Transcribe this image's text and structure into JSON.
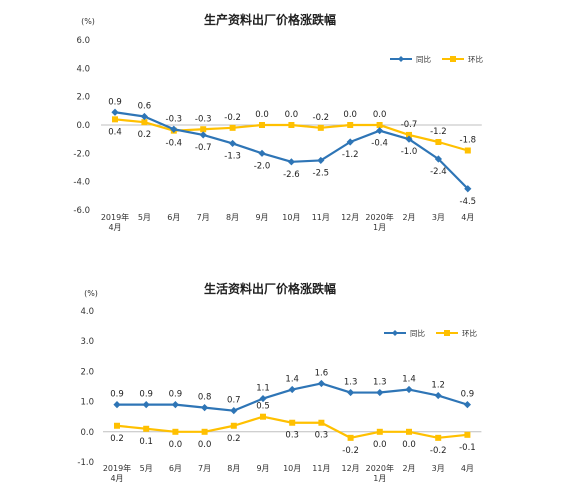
{
  "colors": {
    "yoy": "#2E75B6",
    "mom": "#FFC000",
    "grid": "#D9D9D9",
    "axis": "#BFBFBF"
  },
  "chart_data": [
    {
      "type": "line",
      "title": "生产资料出厂价格涨跌幅",
      "unit": "(%)",
      "x_tick_labels": [
        "2019年",
        "5月",
        "6月",
        "7月",
        "8月",
        "9月",
        "10月",
        "11月",
        "12月",
        "2020年",
        "2月",
        "3月",
        "4月"
      ],
      "x_tick_sublabels": [
        "4月",
        "",
        "",
        "",
        "",
        "",
        "",
        "",
        "",
        "1月",
        "",
        "",
        ""
      ],
      "ylim": [
        -6.0,
        6.0
      ],
      "yticks": [
        "6.0",
        "4.0",
        "2.0",
        "0.0",
        "-2.0",
        "-4.0",
        "-6.0"
      ],
      "ytick_values": [
        6,
        4,
        2,
        0,
        -2,
        -4,
        -6
      ],
      "legend_position": "top-right",
      "grid": false,
      "series": [
        {
          "name": "同比",
          "key": "yoy",
          "values": [
            0.9,
            0.6,
            -0.3,
            -0.7,
            -1.3,
            -2.0,
            -2.6,
            -2.5,
            -1.2,
            -0.4,
            -1.0,
            -2.4,
            -4.5
          ],
          "labels": [
            "0.9",
            "0.6",
            "-0.3",
            "-0.7",
            "-1.3",
            "-2.0",
            "-2.6",
            "-2.5",
            "-1.2",
            "-0.4",
            "-1.0",
            "-2.4",
            "-4.5"
          ]
        },
        {
          "name": "环比",
          "key": "mom",
          "values": [
            0.4,
            0.2,
            -0.4,
            -0.3,
            -0.2,
            0.0,
            0.0,
            -0.2,
            0.0,
            0.0,
            -0.7,
            -1.2,
            -1.8
          ],
          "labels": [
            "0.4",
            "0.2",
            "-0.4",
            "-0.3",
            "-0.2",
            "0.0",
            "0.0",
            "-0.2",
            "0.0",
            "0.0",
            "-0.7",
            "-1.2",
            "-1.8"
          ]
        }
      ]
    },
    {
      "type": "line",
      "title": "生活资料出厂价格涨跌幅",
      "unit": "(%)",
      "x_tick_labels": [
        "2019年",
        "5月",
        "6月",
        "7月",
        "8月",
        "9月",
        "10月",
        "11月",
        "12月",
        "2020年",
        "2月",
        "3月",
        "4月"
      ],
      "x_tick_sublabels": [
        "4月",
        "",
        "",
        "",
        "",
        "",
        "",
        "",
        "",
        "1月",
        "",
        "",
        ""
      ],
      "ylim": [
        -1.0,
        4.0
      ],
      "yticks": [
        "4.0",
        "3.0",
        "2.0",
        "1.0",
        "0.0",
        "-1.0"
      ],
      "ytick_values": [
        4,
        3,
        2,
        1,
        0,
        -1
      ],
      "legend_position": "top-right",
      "grid": false,
      "series": [
        {
          "name": "同比",
          "key": "yoy",
          "values": [
            0.9,
            0.9,
            0.9,
            0.8,
            0.7,
            1.1,
            1.4,
            1.6,
            1.3,
            1.3,
            1.4,
            1.2,
            0.9
          ],
          "labels": [
            "0.9",
            "0.9",
            "0.9",
            "0.8",
            "0.7",
            "1.1",
            "1.4",
            "1.6",
            "1.3",
            "1.3",
            "1.4",
            "1.2",
            "0.9"
          ]
        },
        {
          "name": "环比",
          "key": "mom",
          "values": [
            0.2,
            0.1,
            0.0,
            0.0,
            0.2,
            0.5,
            0.3,
            0.3,
            -0.2,
            0.0,
            0.0,
            -0.2,
            -0.1
          ],
          "labels": [
            "0.2",
            "0.1",
            "0.0",
            "0.0",
            "0.2",
            "0.5",
            "0.3",
            "0.3",
            "-0.2",
            "0.0",
            "0.0",
            "-0.2",
            "-0.1"
          ]
        }
      ]
    }
  ]
}
